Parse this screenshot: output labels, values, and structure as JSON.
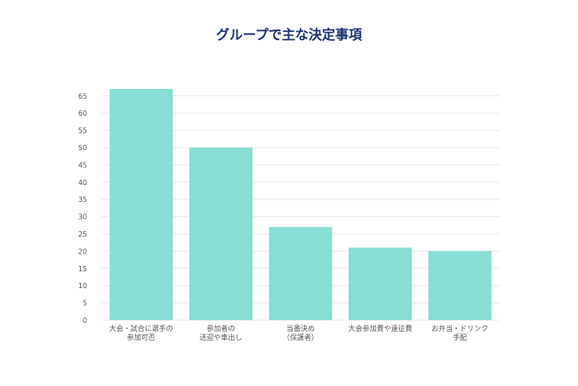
{
  "chart_data": {
    "type": "bar",
    "title": "グループで主な決定事項",
    "xlabel": "",
    "ylabel": "",
    "ylim": [
      0,
      67
    ],
    "yticks": [
      0,
      5,
      10,
      15,
      20,
      25,
      30,
      35,
      40,
      45,
      50,
      55,
      60,
      65
    ],
    "grid": true,
    "categories": [
      [
        "大会・試合に選手の",
        "参加可否"
      ],
      [
        "参加者の",
        "送迎や車出し"
      ],
      [
        "当番決め",
        "（保護者）"
      ],
      [
        "大会参加費や遠征費"
      ],
      [
        "お弁当・ドリンク",
        "手配"
      ]
    ],
    "values": [
      67,
      50,
      27,
      21,
      20
    ],
    "colors": {
      "bar": "#88ddd4",
      "grid": "#ebebeb",
      "title": "#1c3270",
      "text": "#555555"
    }
  }
}
